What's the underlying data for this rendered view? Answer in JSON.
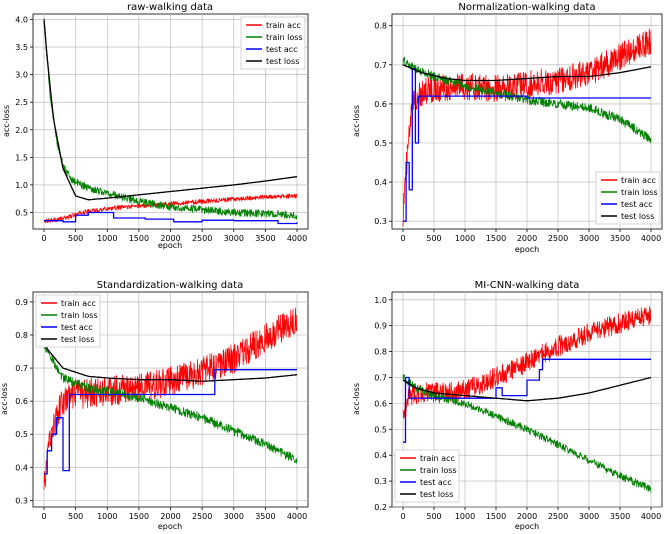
{
  "colors": {
    "train_acc": "#ff0000",
    "train_loss": "#008000",
    "test_acc": "#0000ff",
    "test_loss": "#000000"
  },
  "chart_data": [
    {
      "type": "line",
      "title": "raw-walking data",
      "xlabel": "epoch",
      "ylabel": "acc-loss",
      "xlim": [
        0,
        4000
      ],
      "ylim": [
        0.2,
        4.1
      ],
      "xticks": [
        "0",
        "500",
        "1000",
        "1500",
        "2000",
        "2500",
        "3000",
        "3500",
        "4000"
      ],
      "yticks": [
        "0.5",
        "1.0",
        "1.5",
        "2.0",
        "2.5",
        "3.0",
        "3.5",
        "4.0"
      ],
      "grid": true,
      "legend_position": "top-right",
      "series": [
        {
          "name": "train acc",
          "color": "#ff0000",
          "x": [
            0,
            200,
            400,
            600,
            1000,
            1500,
            2000,
            2500,
            3000,
            3500,
            4000
          ],
          "values": [
            0.35,
            0.37,
            0.42,
            0.5,
            0.57,
            0.62,
            0.66,
            0.7,
            0.74,
            0.78,
            0.8
          ],
          "noise": 0.04
        },
        {
          "name": "train loss",
          "color": "#008000",
          "x": [
            0,
            30,
            100,
            200,
            300,
            400,
            500,
            700,
            1000,
            1500,
            2000,
            2500,
            3000,
            3500,
            4000
          ],
          "values": [
            4.0,
            3.6,
            2.6,
            1.8,
            1.35,
            1.15,
            1.05,
            0.95,
            0.85,
            0.7,
            0.6,
            0.55,
            0.5,
            0.48,
            0.45
          ],
          "noise": 0.07
        },
        {
          "name": "test acc",
          "color": "#0000ff",
          "x": [
            0,
            300,
            500,
            700,
            1100,
            1600,
            2050,
            2500,
            3000,
            3700,
            4000
          ],
          "values": [
            0.35,
            0.33,
            0.45,
            0.5,
            0.4,
            0.38,
            0.33,
            0.36,
            0.35,
            0.3,
            0.32
          ],
          "step": true
        },
        {
          "name": "test loss",
          "color": "#000000",
          "x": [
            0,
            50,
            150,
            300,
            500,
            700,
            1000,
            1500,
            2000,
            2500,
            3000,
            3500,
            4000
          ],
          "values": [
            4.0,
            3.3,
            2.2,
            1.3,
            0.8,
            0.73,
            0.76,
            0.82,
            0.88,
            0.94,
            1.0,
            1.07,
            1.15
          ]
        }
      ]
    },
    {
      "type": "line",
      "title": "Normalization-walking data",
      "xlabel": "epoch",
      "ylabel": "acc-loss",
      "xlim": [
        0,
        4000
      ],
      "ylim": [
        0.28,
        0.83
      ],
      "xticks": [
        "0",
        "500",
        "1000",
        "1500",
        "2000",
        "2500",
        "3000",
        "3500",
        "4000"
      ],
      "yticks": [
        "0.3",
        "0.4",
        "0.5",
        "0.6",
        "0.7",
        "0.8"
      ],
      "grid": true,
      "legend_position": "bottom-right",
      "series": [
        {
          "name": "train acc",
          "color": "#ff0000",
          "x": [
            0,
            60,
            150,
            300,
            500,
            1000,
            1500,
            2000,
            2500,
            3000,
            3500,
            4000
          ],
          "values": [
            0.32,
            0.45,
            0.6,
            0.63,
            0.64,
            0.645,
            0.64,
            0.65,
            0.66,
            0.68,
            0.72,
            0.76
          ],
          "noise": 0.035
        },
        {
          "name": "train loss",
          "color": "#008000",
          "x": [
            0,
            200,
            500,
            1000,
            1500,
            2000,
            2500,
            3000,
            3500,
            4000
          ],
          "values": [
            0.71,
            0.69,
            0.67,
            0.645,
            0.63,
            0.61,
            0.6,
            0.59,
            0.56,
            0.51
          ],
          "noise": 0.012
        },
        {
          "name": "test acc",
          "color": "#0000ff",
          "x": [
            0,
            50,
            100,
            150,
            200,
            250,
            400,
            2000,
            3000,
            4000
          ],
          "values": [
            0.3,
            0.45,
            0.38,
            0.69,
            0.5,
            0.62,
            0.62,
            0.615,
            0.615,
            0.615
          ],
          "step": true
        },
        {
          "name": "test loss",
          "color": "#000000",
          "x": [
            0,
            300,
            700,
            1000,
            1500,
            2000,
            2500,
            3000,
            3500,
            4000
          ],
          "values": [
            0.7,
            0.68,
            0.665,
            0.66,
            0.66,
            0.665,
            0.67,
            0.67,
            0.68,
            0.695
          ]
        }
      ]
    },
    {
      "type": "line",
      "title": "Standardization-walking data",
      "xlabel": "epoch",
      "ylabel": "acc-loss",
      "xlim": [
        0,
        4000
      ],
      "ylim": [
        0.28,
        0.93
      ],
      "xticks": [
        "0",
        "500",
        "1000",
        "1500",
        "2000",
        "2500",
        "3000",
        "3500",
        "4000"
      ],
      "yticks": [
        "0.3",
        "0.4",
        "0.5",
        "0.6",
        "0.7",
        "0.8",
        "0.9"
      ],
      "grid": true,
      "legend_position": "top-left",
      "series": [
        {
          "name": "train acc",
          "color": "#ff0000",
          "x": [
            0,
            100,
            300,
            500,
            1000,
            1500,
            2000,
            2500,
            3000,
            3500,
            4000
          ],
          "values": [
            0.34,
            0.5,
            0.6,
            0.62,
            0.63,
            0.64,
            0.66,
            0.69,
            0.73,
            0.79,
            0.85
          ],
          "noise": 0.045
        },
        {
          "name": "train loss",
          "color": "#008000",
          "x": [
            0,
            300,
            700,
            1000,
            1500,
            2000,
            2500,
            3000,
            3500,
            4000
          ],
          "values": [
            0.77,
            0.67,
            0.64,
            0.63,
            0.61,
            0.58,
            0.55,
            0.51,
            0.47,
            0.42
          ],
          "noise": 0.014
        },
        {
          "name": "test acc",
          "color": "#0000ff",
          "x": [
            0,
            50,
            120,
            200,
            300,
            400,
            2650,
            2700,
            4000
          ],
          "values": [
            0.38,
            0.45,
            0.5,
            0.55,
            0.39,
            0.62,
            0.62,
            0.695,
            0.695
          ],
          "step": true
        },
        {
          "name": "test loss",
          "color": "#000000",
          "x": [
            0,
            300,
            700,
            1000,
            1500,
            2000,
            2500,
            3000,
            3500,
            4000
          ],
          "values": [
            0.77,
            0.7,
            0.675,
            0.67,
            0.665,
            0.665,
            0.66,
            0.665,
            0.67,
            0.68
          ]
        }
      ]
    },
    {
      "type": "line",
      "title": "MI-CNN-walking data",
      "xlabel": "epoch",
      "ylabel": "acc-loss",
      "xlim": [
        0,
        4000
      ],
      "ylim": [
        0.2,
        1.03
      ],
      "xticks": [
        "0",
        "500",
        "1000",
        "1500",
        "2000",
        "2500",
        "3000",
        "3500",
        "4000"
      ],
      "yticks": [
        "0.2",
        "0.3",
        "0.4",
        "0.5",
        "0.6",
        "0.7",
        "0.8",
        "0.9",
        "1.0"
      ],
      "grid": true,
      "legend_position": "bottom-left",
      "series": [
        {
          "name": "train acc",
          "color": "#ff0000",
          "x": [
            0,
            100,
            300,
            700,
            1000,
            1500,
            2000,
            2500,
            3000,
            3500,
            4000
          ],
          "values": [
            0.55,
            0.63,
            0.64,
            0.64,
            0.65,
            0.7,
            0.76,
            0.82,
            0.87,
            0.91,
            0.94
          ],
          "noise": 0.04
        },
        {
          "name": "train loss",
          "color": "#008000",
          "x": [
            0,
            200,
            500,
            1000,
            1500,
            2000,
            2500,
            3000,
            3500,
            4000
          ],
          "values": [
            0.7,
            0.66,
            0.63,
            0.6,
            0.55,
            0.5,
            0.44,
            0.38,
            0.32,
            0.27
          ],
          "noise": 0.015
        },
        {
          "name": "test acc",
          "color": "#0000ff",
          "x": [
            0,
            40,
            100,
            500,
            1000,
            1500,
            1600,
            2000,
            2200,
            2250,
            4000
          ],
          "values": [
            0.45,
            0.7,
            0.62,
            0.62,
            0.62,
            0.66,
            0.63,
            0.69,
            0.73,
            0.77,
            0.77
          ],
          "step": true
        },
        {
          "name": "test loss",
          "color": "#000000",
          "x": [
            0,
            200,
            500,
            1000,
            1500,
            2000,
            2500,
            3000,
            3500,
            4000
          ],
          "values": [
            0.69,
            0.66,
            0.64,
            0.63,
            0.62,
            0.61,
            0.62,
            0.64,
            0.67,
            0.7
          ]
        }
      ]
    }
  ]
}
